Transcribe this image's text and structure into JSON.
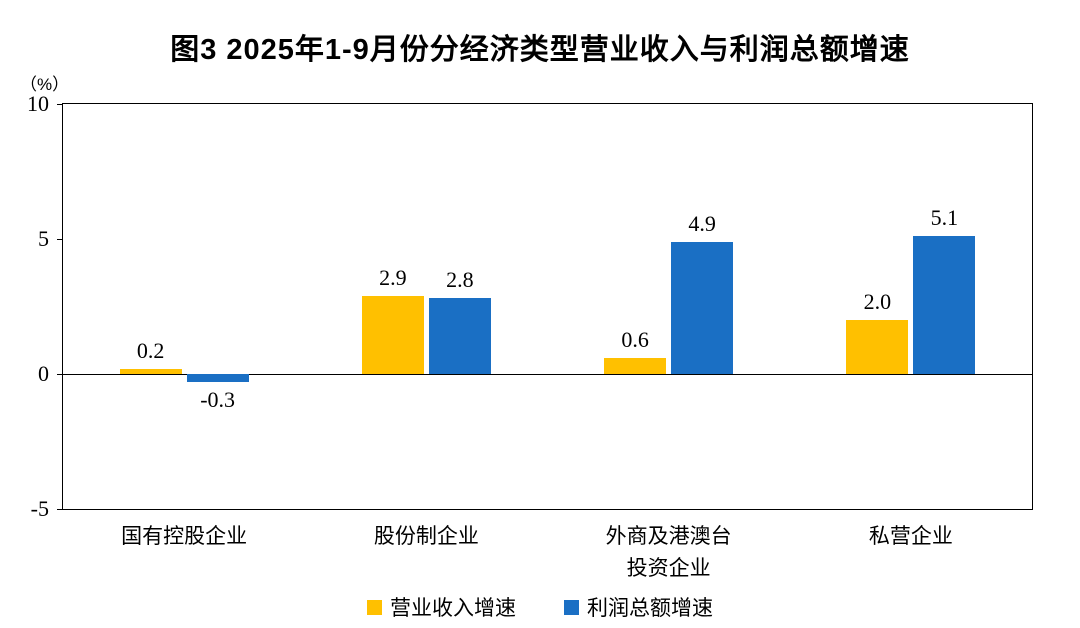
{
  "chart_data": {
    "type": "bar",
    "title": "图3 2025年1-9月份分经济类型营业收入与利润总额增速",
    "ylabel": "（%）",
    "xlabel": "",
    "categories": [
      "国有控股企业",
      "股份制企业",
      "外商及港澳台\n投资企业",
      "私营企业"
    ],
    "series": [
      {
        "name": "营业收入增速",
        "color": "#FFC000",
        "values": [
          0.2,
          2.9,
          0.6,
          2.0
        ]
      },
      {
        "name": "利润总额增速",
        "color": "#1A6FC4",
        "values": [
          -0.3,
          2.8,
          4.9,
          5.1
        ]
      }
    ],
    "ylim": [
      -5,
      10
    ],
    "yticks": [
      10,
      5,
      0,
      -5
    ],
    "grid": false,
    "legend_position": "bottom"
  }
}
